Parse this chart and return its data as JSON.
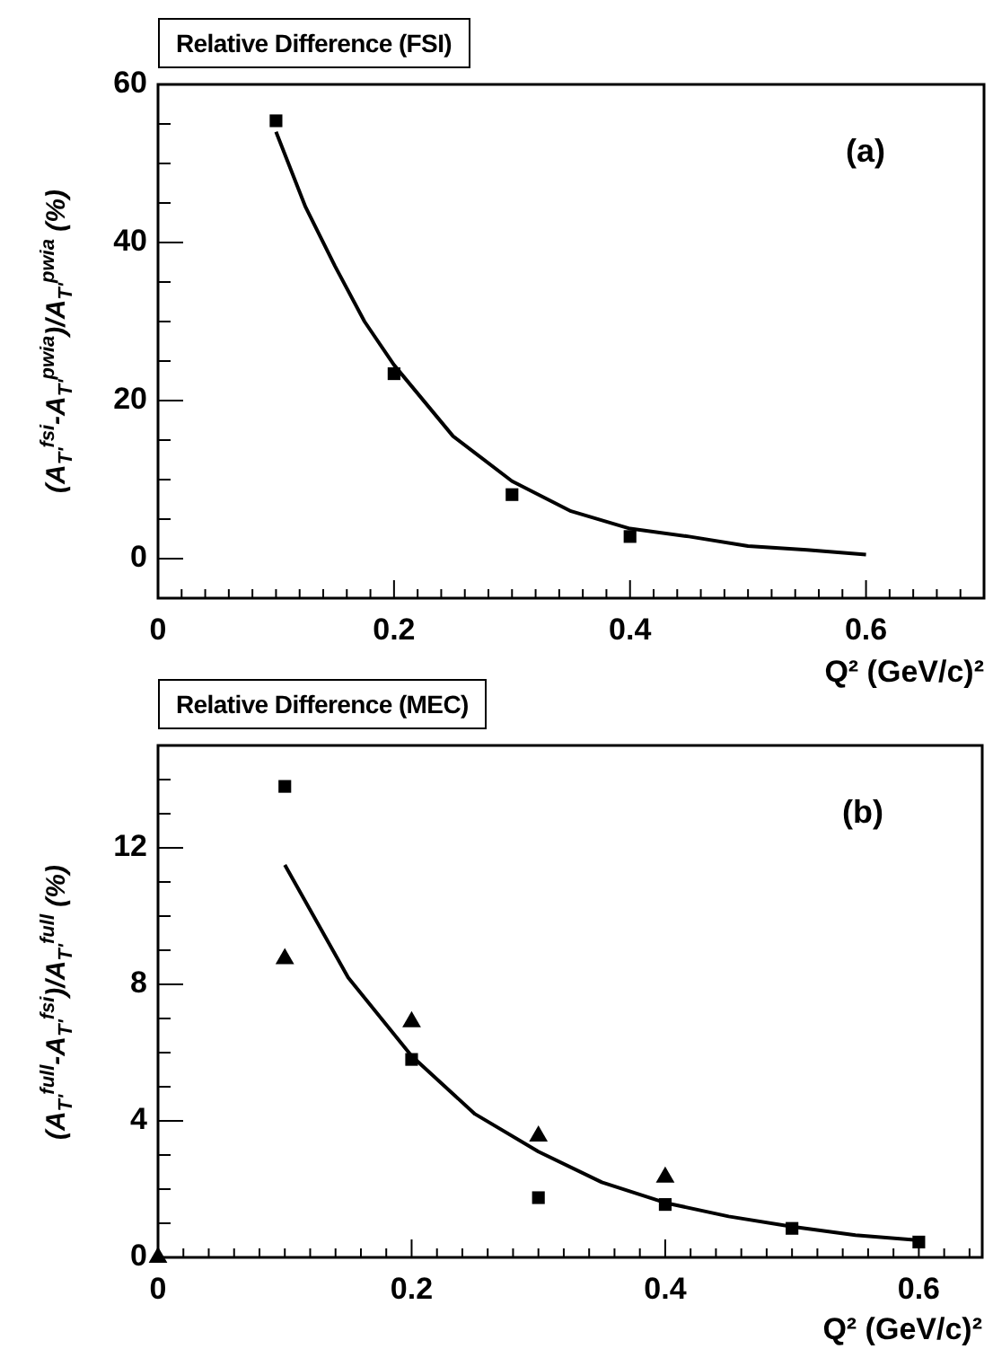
{
  "chart_data": [
    {
      "type": "scatter",
      "title": "Relative Difference (FSI)",
      "xlabel": "Q² (GeV/c)²",
      "ylabel": "(A$_{T'}$$^{fsi}$-A$_{T'}$$^{pwia}$)/A$_{T'}$$^{pwia}$ (%)",
      "annotations": [
        "(a)"
      ],
      "xlim": [
        0,
        0.7
      ],
      "ylim": [
        -5,
        60
      ],
      "xticks": [
        0,
        {
          "value": 0.02,
          "label": null
        },
        {
          "value": 0.04,
          "label": null
        },
        {
          "value": 0.06,
          "label": null
        },
        {
          "value": 0.08,
          "label": null
        },
        {
          "value": 0.1,
          "label": null
        },
        {
          "value": 0.12,
          "label": null
        },
        {
          "value": 0.14,
          "label": null
        },
        {
          "value": 0.16,
          "label": null
        },
        {
          "value": 0.18,
          "label": null
        },
        0.2,
        {
          "value": 0.22,
          "label": null
        },
        {
          "value": 0.24,
          "label": null
        },
        {
          "value": 0.26,
          "label": null
        },
        {
          "value": 0.28,
          "label": null
        },
        {
          "value": 0.3,
          "label": null
        },
        {
          "value": 0.32,
          "label": null
        },
        {
          "value": 0.34,
          "label": null
        },
        {
          "value": 0.36,
          "label": null
        },
        {
          "value": 0.38,
          "label": null
        },
        0.4,
        {
          "value": 0.42,
          "label": null
        },
        {
          "value": 0.44,
          "label": null
        },
        {
          "value": 0.46,
          "label": null
        },
        {
          "value": 0.48,
          "label": null
        },
        {
          "value": 0.5,
          "label": null
        },
        {
          "value": 0.52,
          "label": null
        },
        {
          "value": 0.54,
          "label": null
        },
        {
          "value": 0.56,
          "label": null
        },
        {
          "value": 0.58,
          "label": null
        },
        0.6,
        {
          "value": 0.62,
          "label": null
        },
        {
          "value": 0.64,
          "label": null
        },
        {
          "value": 0.66,
          "label": null
        },
        {
          "value": 0.68,
          "label": null
        }
      ],
      "yticks": [
        {
          "value": -5,
          "label": null
        },
        0,
        {
          "value": 5,
          "label": null
        },
        {
          "value": 10,
          "label": null
        },
        {
          "value": 15,
          "label": null
        },
        20,
        {
          "value": 25,
          "label": null
        },
        {
          "value": 30,
          "label": null
        },
        {
          "value": 35,
          "label": null
        },
        40,
        {
          "value": 45,
          "label": null
        },
        {
          "value": 50,
          "label": null
        },
        {
          "value": 55,
          "label": null
        },
        60
      ],
      "series": [
        {
          "marker": "square",
          "color": "#000000",
          "x": [
            0.1,
            0.2,
            0.3,
            0.4
          ],
          "values": [
            55.4,
            23.4,
            8.1,
            2.8
          ]
        },
        {
          "type": "line",
          "marker": "none",
          "color": "#000000",
          "x": [
            0.1,
            0.125,
            0.15,
            0.175,
            0.2,
            0.25,
            0.3,
            0.35,
            0.4,
            0.45,
            0.5,
            0.55,
            0.6
          ],
          "values": [
            54,
            44.5,
            37,
            30,
            24.5,
            15.5,
            9.8,
            6,
            3.8,
            2.8,
            1.6,
            1.1,
            0.5
          ]
        }
      ]
    },
    {
      "type": "scatter",
      "title": "Relative Difference (MEC)",
      "xlabel": "Q² (GeV/c)²",
      "ylabel": "(A$_{T'}$$^{full}$-A$_{T'}$$^{fsi}$)/A$_{T'}$$^{full}$ (%)",
      "annotations": [
        "(b)"
      ],
      "xlim": [
        0,
        0.65
      ],
      "ylim": [
        0,
        15
      ],
      "xticks": [
        0,
        {
          "value": 0.02,
          "label": null
        },
        {
          "value": 0.04,
          "label": null
        },
        {
          "value": 0.06,
          "label": null
        },
        {
          "value": 0.08,
          "label": null
        },
        {
          "value": 0.1,
          "label": null
        },
        {
          "value": 0.12,
          "label": null
        },
        {
          "value": 0.14,
          "label": null
        },
        {
          "value": 0.16,
          "label": null
        },
        {
          "value": 0.18,
          "label": null
        },
        0.2,
        {
          "value": 0.22,
          "label": null
        },
        {
          "value": 0.24,
          "label": null
        },
        {
          "value": 0.26,
          "label": null
        },
        {
          "value": 0.28,
          "label": null
        },
        {
          "value": 0.3,
          "label": null
        },
        {
          "value": 0.32,
          "label": null
        },
        {
          "value": 0.34,
          "label": null
        },
        {
          "value": 0.36,
          "label": null
        },
        {
          "value": 0.38,
          "label": null
        },
        0.4,
        {
          "value": 0.42,
          "label": null
        },
        {
          "value": 0.44,
          "label": null
        },
        {
          "value": 0.46,
          "label": null
        },
        {
          "value": 0.48,
          "label": null
        },
        {
          "value": 0.5,
          "label": null
        },
        {
          "value": 0.52,
          "label": null
        },
        {
          "value": 0.54,
          "label": null
        },
        {
          "value": 0.56,
          "label": null
        },
        {
          "value": 0.58,
          "label": null
        },
        0.6,
        {
          "value": 0.62,
          "label": null
        },
        {
          "value": 0.64,
          "label": null
        }
      ],
      "yticks": [
        0,
        {
          "value": 1,
          "label": null
        },
        {
          "value": 2,
          "label": null
        },
        {
          "value": 3,
          "label": null
        },
        4,
        {
          "value": 5,
          "label": null
        },
        {
          "value": 6,
          "label": null
        },
        {
          "value": 7,
          "label": null
        },
        8,
        {
          "value": 9,
          "label": null
        },
        {
          "value": 10,
          "label": null
        },
        {
          "value": 11,
          "label": null
        },
        12,
        {
          "value": 13,
          "label": null
        },
        {
          "value": 14,
          "label": null
        }
      ],
      "series": [
        {
          "marker": "square",
          "color": "#000000",
          "x": [
            0.1,
            0.2,
            0.3,
            0.4,
            0.5,
            0.6
          ],
          "values": [
            13.8,
            5.8,
            1.75,
            1.55,
            0.85,
            0.45
          ]
        },
        {
          "marker": "triangle",
          "color": "#000000",
          "x": [
            0,
            0.1,
            0.2,
            0.3,
            0.4
          ],
          "values": [
            0,
            8.75,
            6.9,
            3.55,
            2.35
          ]
        },
        {
          "type": "line",
          "marker": "none",
          "color": "#000000",
          "x": [
            0.1,
            0.15,
            0.2,
            0.25,
            0.3,
            0.35,
            0.4,
            0.45,
            0.5,
            0.55,
            0.6
          ],
          "values": [
            11.5,
            8.2,
            5.9,
            4.2,
            3.1,
            2.2,
            1.6,
            1.2,
            0.9,
            0.65,
            0.5
          ]
        }
      ]
    }
  ]
}
